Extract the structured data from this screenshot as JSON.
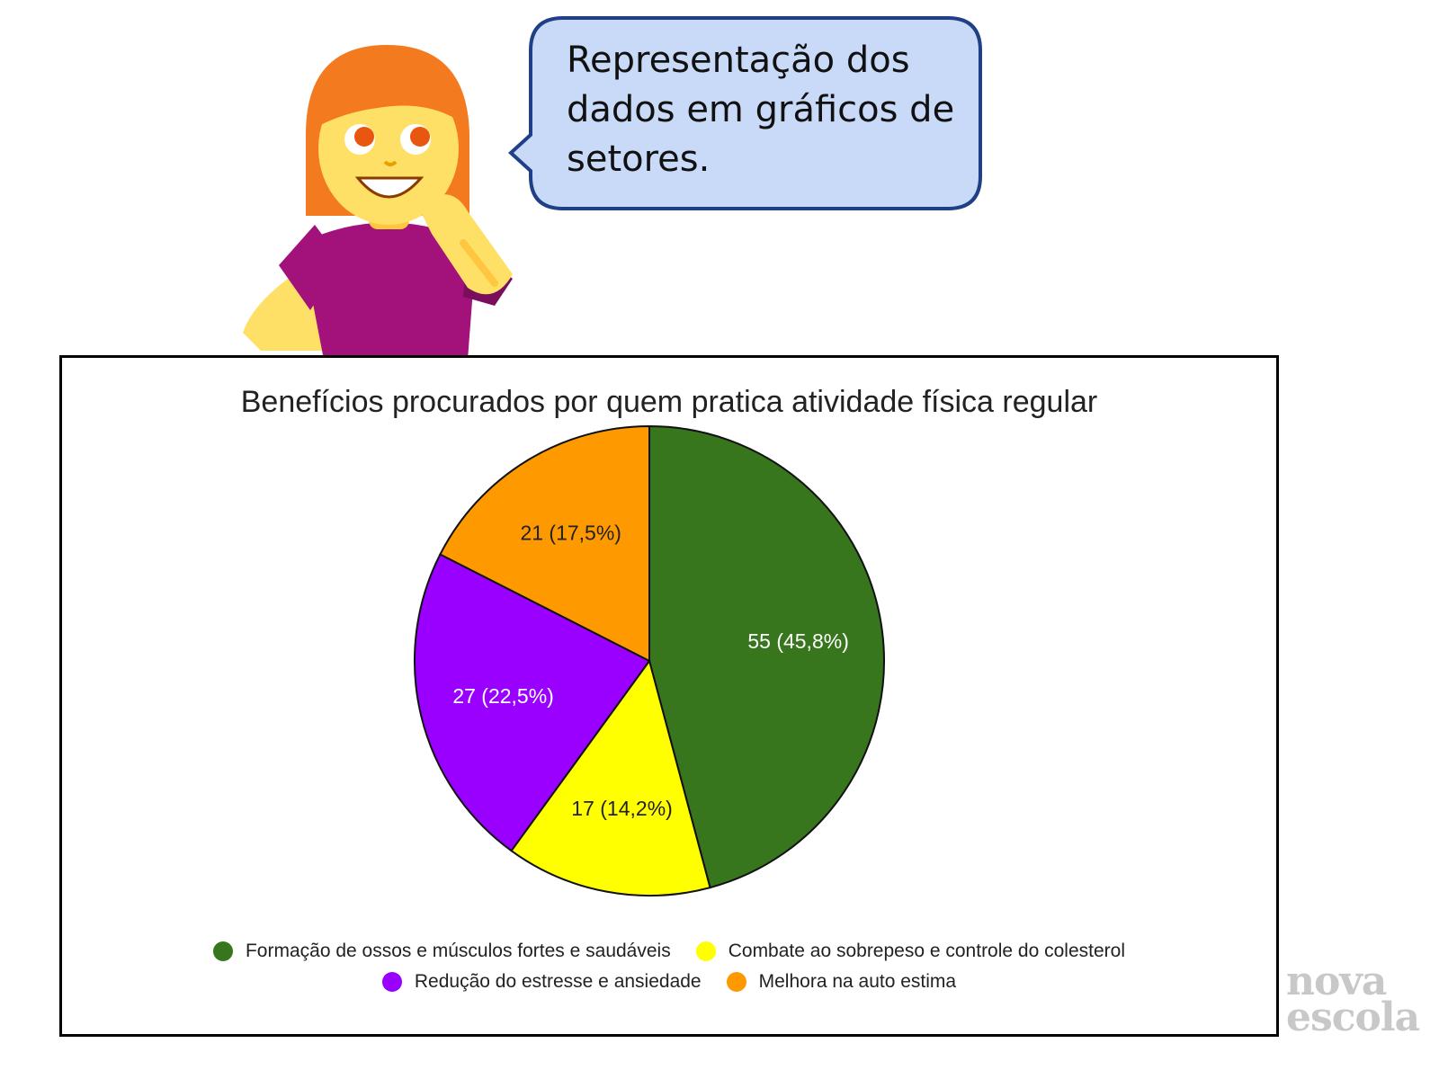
{
  "speech_bubble": {
    "text": "Representação dos dados em gráficos de setores."
  },
  "colors": {
    "bubble_fill": "#c9daf8",
    "bubble_border": "#1f3f86",
    "hair": "#f47a20",
    "skin": "#ffe066",
    "shirt": "#a3117a"
  },
  "chart_data": {
    "type": "pie",
    "title": "Benefícios procurados por quem pratica atividade física regular",
    "legend_position": "bottom",
    "slices": [
      {
        "name": "Formação de ossos e músculos fortes e saudáveis",
        "value": 55,
        "label": "55 (45,8%)",
        "color": "#38761d",
        "label_color": "#ffffff"
      },
      {
        "name": "Combate ao sobrepeso e controle do colesterol",
        "value": 17,
        "label": "17 (14,2%)",
        "color": "#ffff00",
        "label_color": "#222222"
      },
      {
        "name": "Redução do estresse e ansiedade",
        "value": 27,
        "label": "27 (22,5%)",
        "color": "#9900ff",
        "label_color": "#ffffff"
      },
      {
        "name": "Melhora na auto estima",
        "value": 21,
        "label": "21 (17,5%)",
        "color": "#ff9900",
        "label_color": "#222222"
      }
    ]
  },
  "brand": {
    "line1": "nova",
    "line2": "escola"
  }
}
